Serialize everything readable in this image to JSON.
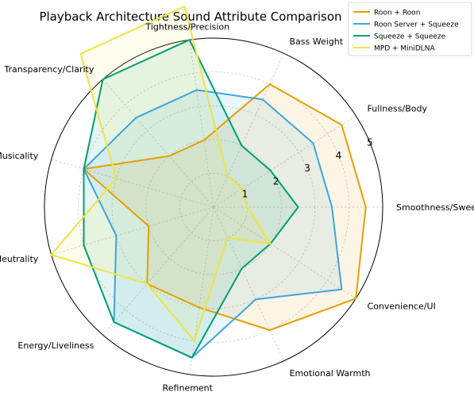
{
  "chart_data": {
    "type": "radar",
    "title": "Playback Architecture Sound Attribute Comparison",
    "axes": [
      "Smoothness/Sweetness",
      "Fullness/Body",
      "Bass Weight",
      "Tightness/Precision",
      "Transparency/Clarity",
      "Flow/Musicality",
      "Neutrality",
      "Energy/Liveliness",
      "Refinement",
      "Emotional Warmth",
      "Convenience/UI"
    ],
    "rlim": [
      0,
      5
    ],
    "rticks": [
      1,
      2,
      3,
      4,
      5
    ],
    "grid": true,
    "legend_position": "top-right",
    "series": [
      {
        "name": "Roon + Roon",
        "color": "#E69F00",
        "values": [
          4.5,
          4.5,
          4.0,
          2.0,
          2.0,
          4.0,
          2.0,
          3.0,
          3.0,
          4.0,
          5.0
        ]
      },
      {
        "name": "Roon Server + Squeeze",
        "color": "#3DA5E0",
        "values": [
          3.5,
          3.5,
          3.5,
          3.5,
          3.5,
          4.0,
          3.0,
          4.5,
          4.5,
          3.0,
          4.5
        ]
      },
      {
        "name": "Squeeze + Squeeze",
        "color": "#009E73",
        "values": [
          2.5,
          2.0,
          2.0,
          5.0,
          5.0,
          4.0,
          4.0,
          4.5,
          4.5,
          2.0,
          2.0
        ]
      },
      {
        "name": "MPD + MiniDLNA",
        "color": "#F0E442",
        "values": [
          1.0,
          1.0,
          1.0,
          6.0,
          6.0,
          3.0,
          5.0,
          3.0,
          4.0,
          1.0,
          2.0
        ]
      }
    ]
  }
}
